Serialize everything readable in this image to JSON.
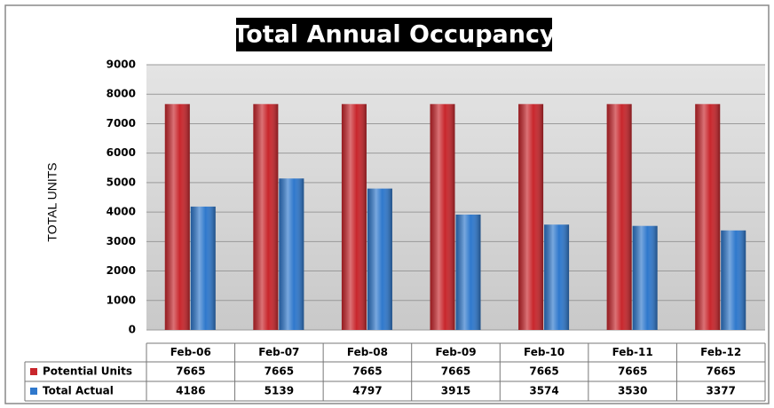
{
  "chart_data": {
    "type": "bar",
    "title": "Total Annual Occupancy",
    "y_label": "TOTAL UNITS",
    "categories": [
      "Feb-06",
      "Feb-07",
      "Feb-08",
      "Feb-09",
      "Feb-10",
      "Feb-11",
      "Feb-12"
    ],
    "series": [
      {
        "name": "Potential Units",
        "color": "#c8262c",
        "values": [
          7665,
          7665,
          7665,
          7665,
          7665,
          7665,
          7665
        ]
      },
      {
        "name": "Total Actual",
        "color": "#2f78cc",
        "values": [
          4186,
          5139,
          4797,
          3915,
          3574,
          3530,
          3377
        ]
      }
    ],
    "ylim": [
      0,
      9000
    ],
    "yticks": [
      0,
      1000,
      2000,
      3000,
      4000,
      5000,
      6000,
      7000,
      8000,
      9000
    ],
    "grid": true
  }
}
